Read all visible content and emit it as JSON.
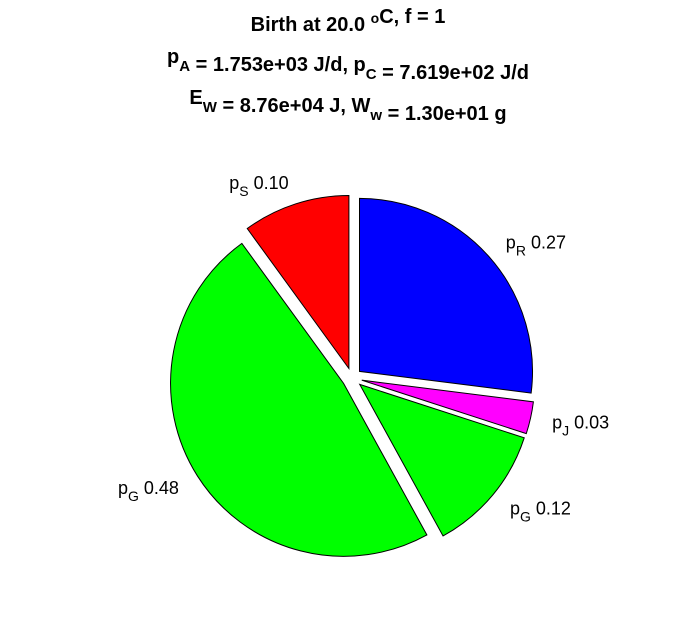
{
  "chart_data": {
    "type": "pie",
    "title_lines": [
      [
        {
          "t": "Birth at 20.0 "
        },
        {
          "t": "o",
          "s": "sup"
        },
        {
          "t": "C, f = 1"
        }
      ],
      [
        {
          "t": "p"
        },
        {
          "t": "A",
          "s": "sub"
        },
        {
          "t": " = 1.753e+03 J/d, p"
        },
        {
          "t": "C",
          "s": "sub"
        },
        {
          "t": " = 7.619e+02 J/d"
        }
      ],
      [
        {
          "t": "E"
        },
        {
          "t": "W",
          "s": "sub"
        },
        {
          "t": " = 8.76e+04 J, W"
        },
        {
          "t": "w",
          "s": "sub"
        },
        {
          "t": " = 1.30e+01 g"
        }
      ]
    ],
    "slices": [
      {
        "symbol": "p",
        "subscript": "R",
        "value": 0.27,
        "value_label": "0.27",
        "color": "#0000ff"
      },
      {
        "symbol": "p",
        "subscript": "J",
        "value": 0.03,
        "value_label": "0.03",
        "color": "#ff00ff"
      },
      {
        "symbol": "p",
        "subscript": "G",
        "value": 0.12,
        "value_label": "0.12",
        "color": "#00ff00"
      },
      {
        "symbol": "p",
        "subscript": "G",
        "value": 0.48,
        "value_label": "0.48",
        "color": "#00ff00"
      },
      {
        "symbol": "p",
        "subscript": "S",
        "value": 0.1,
        "value_label": "0.10",
        "color": "#ff0000"
      }
    ],
    "start": "12 o'clock",
    "direction": "clockwise",
    "exploded": true,
    "legend": "none"
  }
}
